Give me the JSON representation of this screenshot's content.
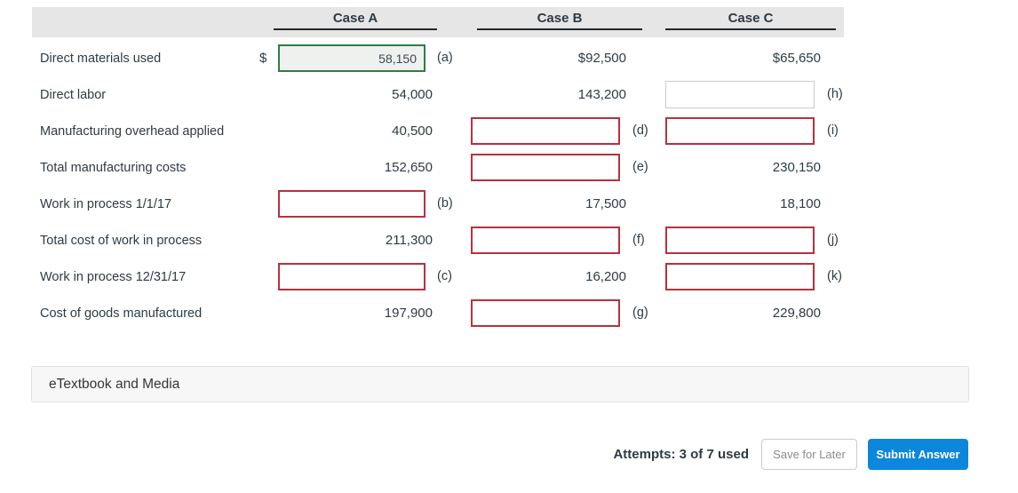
{
  "columns": [
    {
      "label": "Case A"
    },
    {
      "label": "Case B"
    },
    {
      "label": "Case C"
    }
  ],
  "rows": [
    {
      "label": "Direct materials used",
      "cells": {
        "a": {
          "kind": "input",
          "state": "correct",
          "value": "58,150",
          "letter": "(a)",
          "prefix": "$"
        },
        "b": {
          "kind": "value",
          "text": "$92,500"
        },
        "c": {
          "kind": "value",
          "text": "$65,650"
        }
      }
    },
    {
      "label": "Direct labor",
      "cells": {
        "a": {
          "kind": "value",
          "text": "54,000"
        },
        "b": {
          "kind": "value",
          "text": "143,200"
        },
        "c": {
          "kind": "input",
          "state": "empty",
          "value": "",
          "letter": "(h)"
        }
      }
    },
    {
      "label": "Manufacturing overhead applied",
      "cells": {
        "a": {
          "kind": "value",
          "text": "40,500"
        },
        "b": {
          "kind": "input",
          "state": "error",
          "value": "",
          "letter": "(d)"
        },
        "c": {
          "kind": "input",
          "state": "error",
          "value": "",
          "letter": "(i)"
        }
      }
    },
    {
      "label": "Total manufacturing costs",
      "cells": {
        "a": {
          "kind": "value",
          "text": "152,650"
        },
        "b": {
          "kind": "input",
          "state": "error",
          "value": "",
          "letter": "(e)"
        },
        "c": {
          "kind": "value",
          "text": "230,150"
        }
      }
    },
    {
      "label": "Work in process 1/1/17",
      "cells": {
        "a": {
          "kind": "input",
          "state": "error",
          "value": "",
          "letter": "(b)"
        },
        "b": {
          "kind": "value",
          "text": "17,500"
        },
        "c": {
          "kind": "value",
          "text": "18,100"
        }
      }
    },
    {
      "label": "Total cost of work in process",
      "cells": {
        "a": {
          "kind": "value",
          "text": "211,300"
        },
        "b": {
          "kind": "input",
          "state": "error",
          "value": "",
          "letter": "(f)"
        },
        "c": {
          "kind": "input",
          "state": "error",
          "value": "",
          "letter": "(j)"
        }
      }
    },
    {
      "label": "Work in process 12/31/17",
      "cells": {
        "a": {
          "kind": "input",
          "state": "error",
          "value": "",
          "letter": "(c)"
        },
        "b": {
          "kind": "value",
          "text": "16,200"
        },
        "c": {
          "kind": "input",
          "state": "error",
          "value": "",
          "letter": "(k)"
        }
      }
    },
    {
      "label": "Cost of goods manufactured",
      "cells": {
        "a": {
          "kind": "value",
          "text": "197,900"
        },
        "b": {
          "kind": "input",
          "state": "error",
          "value": "",
          "letter": "(g)"
        },
        "c": {
          "kind": "value",
          "text": "229,800"
        }
      }
    }
  ],
  "etextbook": {
    "label": "eTextbook and Media"
  },
  "footer": {
    "attempts": "Attempts: 3 of 7 used",
    "save_label": "Save for Later",
    "submit_label": "Submit Answer"
  },
  "colors": {
    "accent_blue": "#0d87dc",
    "error_red": "#b5323e",
    "correct_green": "#2e7d44",
    "header_gray": "#e6e6e6",
    "text": "#2d3b45"
  }
}
